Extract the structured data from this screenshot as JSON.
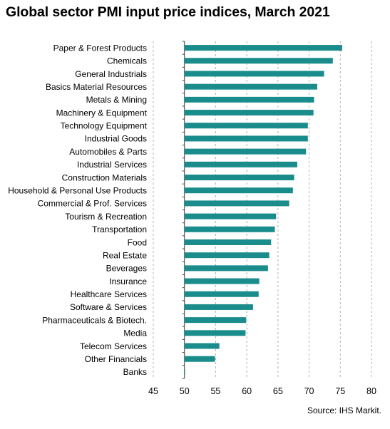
{
  "chart_data": {
    "type": "bar",
    "orientation": "horizontal",
    "title": "Global sector PMI input price indices, March 2021",
    "categories": [
      "Paper & Forest Products",
      "Chemicals",
      "General Industrials",
      "Basics Material Resources",
      "Metals & Mining",
      "Machinery & Equipment",
      "Technology Equipment",
      "Industrial Goods",
      "Automobiles & Parts",
      "Industrial Services",
      "Construction Materials",
      "Household & Personal Use Products",
      "Commercial & Prof. Services",
      "Tourism & Recreation",
      "Transportation",
      "Food",
      "Real Estate",
      "Beverages",
      "Insurance",
      "Healthcare Services",
      "Software & Services",
      "Pharmaceuticals & Biotech.",
      "Media",
      "Telecom Services",
      "Other Financials",
      "Banks"
    ],
    "values": [
      75.3,
      73.8,
      72.4,
      71.3,
      70.8,
      70.7,
      69.8,
      69.8,
      69.5,
      68.1,
      67.6,
      67.4,
      66.8,
      64.7,
      64.5,
      63.9,
      63.6,
      63.4,
      62.0,
      61.9,
      61.0,
      59.9,
      59.8,
      55.6,
      54.9,
      50.1
    ],
    "xlim": [
      45,
      80
    ],
    "xticks": [
      45,
      50,
      55,
      60,
      65,
      70,
      75,
      80
    ],
    "xlabel": "",
    "ylabel": "",
    "grid": "vertical dashed",
    "bar_color": "#1a8c8c"
  },
  "source": "Source: IHS Markit."
}
